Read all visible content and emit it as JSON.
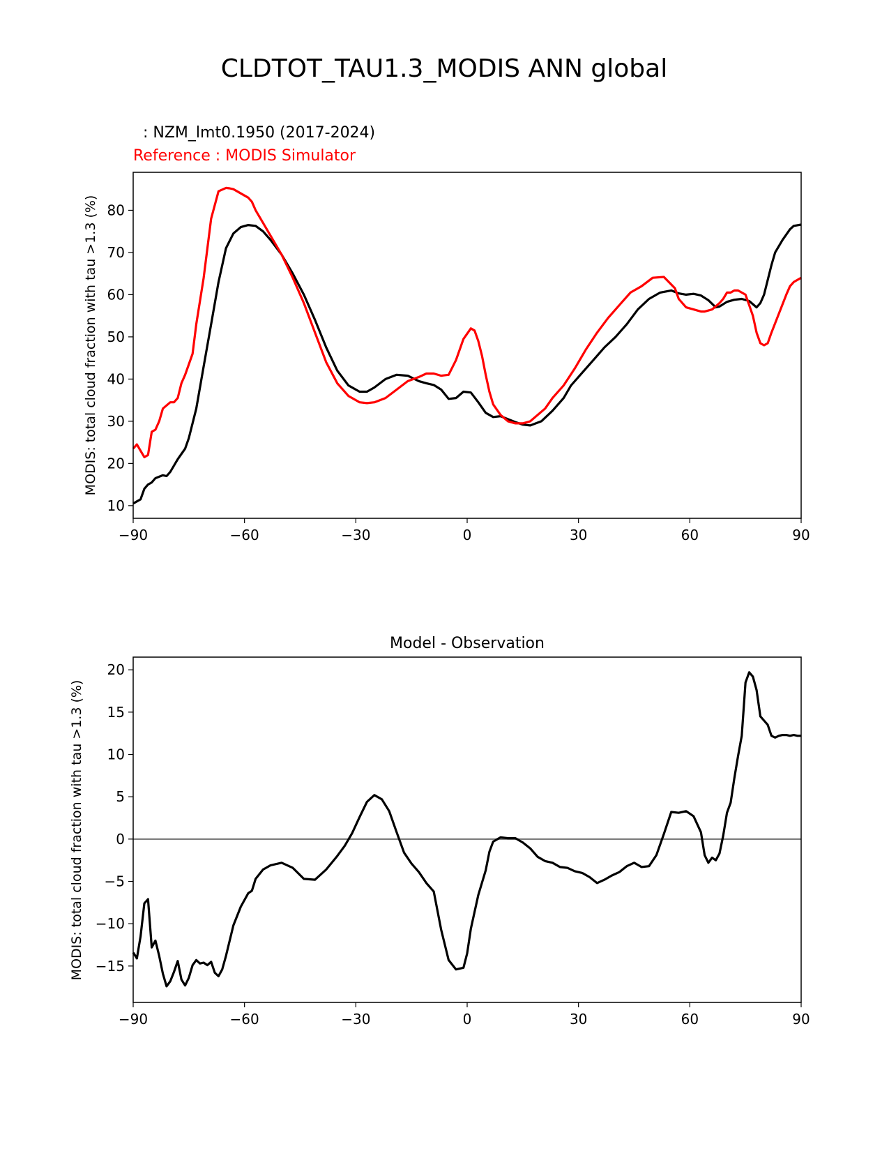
{
  "title": "CLDTOT_TAU1.3_MODIS ANN global",
  "colors": {
    "model": "#000000",
    "reference": "#ff0000",
    "zero_line": "#808080"
  },
  "chart_data": [
    {
      "type": "line",
      "model_label": ": NZM_lmt0.1950 (2017-2024)",
      "reference_label": "Reference : MODIS Simulator",
      "xlabel": "",
      "ylabel": "MODIS: total cloud fraction with tau >1.3 (%)",
      "xlim": [
        -90,
        90
      ],
      "ylim": [
        7,
        89
      ],
      "xticks": [
        -90,
        -60,
        -30,
        0,
        30,
        60,
        90
      ],
      "xtick_labels": [
        "−90",
        "−60",
        "−30",
        "0",
        "30",
        "60",
        "90"
      ],
      "yticks": [
        10,
        20,
        30,
        40,
        50,
        60,
        70,
        80
      ],
      "ytick_labels": [
        "10",
        "20",
        "30",
        "40",
        "50",
        "60",
        "70",
        "80"
      ],
      "series": [
        {
          "name": "NZM_lmt0.1950 (2017-2024)",
          "x": [
            -90,
            -88,
            -87,
            -86,
            -85,
            -84,
            -82,
            -81,
            -80,
            -78,
            -76,
            -75,
            -73,
            -71,
            -69,
            -67,
            -65,
            -63,
            -61,
            -59,
            -57,
            -55,
            -53,
            -50,
            -47,
            -44,
            -41,
            -38,
            -35,
            -32,
            -29,
            -27,
            -25,
            -22,
            -19,
            -16,
            -13,
            -11,
            -9,
            -7,
            -5,
            -3,
            -1,
            1,
            3,
            5,
            7,
            9,
            11,
            13,
            15,
            17,
            20,
            23,
            26,
            28,
            31,
            34,
            37,
            40,
            43,
            46,
            49,
            52,
            55,
            57,
            59,
            61,
            63,
            65,
            67,
            68,
            70,
            72,
            74,
            76,
            78,
            79,
            80,
            82,
            83,
            85,
            87,
            88,
            90
          ],
          "y": [
            10.5,
            11.5,
            14,
            15,
            15.5,
            16.5,
            17.2,
            17,
            18,
            21,
            23.5,
            26,
            33,
            43,
            53,
            63,
            71,
            74.5,
            76,
            76.5,
            76.3,
            75,
            73,
            69.5,
            65,
            60,
            54,
            47.5,
            42,
            38.5,
            37,
            37,
            38,
            40,
            41,
            40.8,
            39.5,
            39,
            38.6,
            37.5,
            35.3,
            35.5,
            37,
            36.8,
            34.5,
            32,
            31,
            31.2,
            30.5,
            29.8,
            29.2,
            29,
            30,
            32.5,
            35.5,
            38.5,
            41.5,
            44.5,
            47.5,
            50,
            53,
            56.5,
            59,
            60.5,
            61,
            60.3,
            60,
            60.2,
            59.8,
            58.7,
            57,
            57.2,
            58.3,
            58.8,
            59,
            58.5,
            57,
            58,
            60,
            67,
            70,
            73,
            75.5,
            76.3,
            76.6
          ]
        },
        {
          "name": "MODIS Simulator",
          "x": [
            -90,
            -89,
            -88,
            -87,
            -86,
            -85,
            -84,
            -83,
            -82,
            -80,
            -79,
            -78,
            -77,
            -76,
            -74,
            -73,
            -71,
            -69,
            -67,
            -65,
            -64,
            -63,
            -62,
            -60,
            -59,
            -58,
            -57,
            -55,
            -53,
            -50,
            -47,
            -44,
            -41,
            -38,
            -35,
            -32,
            -29,
            -27,
            -25,
            -22,
            -19,
            -16,
            -13,
            -11,
            -9,
            -7,
            -5,
            -3,
            -1,
            1,
            2,
            3,
            4,
            5,
            6,
            7,
            9,
            11,
            13,
            15,
            17,
            19,
            21,
            23,
            26,
            29,
            32,
            35,
            38,
            41,
            44,
            47,
            50,
            53,
            56,
            57,
            59,
            61,
            63,
            64,
            66,
            68,
            69,
            70,
            71,
            72,
            73,
            75,
            76,
            77,
            78,
            79,
            80,
            81,
            82,
            84,
            86,
            87,
            88,
            90
          ],
          "y": [
            23.5,
            24.5,
            23,
            21.5,
            22,
            27.5,
            28,
            30,
            33,
            34.5,
            34.5,
            35.5,
            39,
            41,
            46,
            53,
            64,
            78,
            84.5,
            85.3,
            85.2,
            85,
            84.5,
            83.5,
            83,
            82,
            80,
            77,
            74,
            69.5,
            64,
            58,
            51,
            44,
            39,
            36,
            34.5,
            34.3,
            34.5,
            35.5,
            37.5,
            39.5,
            40.5,
            41.3,
            41.3,
            40.8,
            41,
            44.5,
            49.5,
            52,
            51.5,
            49,
            45.5,
            41,
            37,
            34,
            31.5,
            30,
            29.5,
            29.5,
            30,
            31.5,
            33,
            35.5,
            38.5,
            42.5,
            47,
            51,
            54.5,
            57.5,
            60.5,
            62,
            64,
            64.2,
            61.5,
            59,
            57,
            56.5,
            56,
            56,
            56.5,
            58,
            59,
            60.5,
            60.5,
            61,
            61,
            60,
            57.5,
            55,
            51,
            48.5,
            48,
            48.5,
            51,
            55.5,
            60,
            62,
            63,
            64
          ]
        }
      ]
    },
    {
      "type": "line",
      "title": "Model - Observation",
      "xlabel": "",
      "ylabel": "MODIS: total cloud fraction with tau >1.3 (%)",
      "xlim": [
        -90,
        90
      ],
      "ylim": [
        -19.3,
        21.5
      ],
      "xticks": [
        -90,
        -60,
        -30,
        0,
        30,
        60,
        90
      ],
      "xtick_labels": [
        "−90",
        "−60",
        "−30",
        "0",
        "30",
        "60",
        "90"
      ],
      "yticks": [
        -15,
        -10,
        -5,
        0,
        5,
        10,
        15,
        20
      ],
      "ytick_labels": [
        "−15",
        "−10",
        "−5",
        "0",
        "5",
        "10",
        "15",
        "20"
      ],
      "zero_line": 0,
      "series": [
        {
          "name": "Model - Observation",
          "x": [
            -90,
            -89,
            -88,
            -87,
            -86,
            -85,
            -84,
            -83,
            -82,
            -81,
            -80,
            -79,
            -78,
            -77,
            -76,
            -75,
            -74,
            -73,
            -72,
            -71,
            -70,
            -69,
            -68,
            -67,
            -66,
            -65,
            -63,
            -61,
            -59,
            -58,
            -57,
            -55,
            -53,
            -50,
            -47,
            -44,
            -41,
            -38,
            -35,
            -33,
            -31,
            -29,
            -27,
            -25,
            -23,
            -21,
            -19,
            -17,
            -15,
            -13,
            -11,
            -9,
            -7,
            -5,
            -3,
            -1,
            0,
            1,
            3,
            5,
            6,
            7,
            9,
            11,
            13,
            15,
            17,
            19,
            21,
            23,
            25,
            27,
            29,
            31,
            33,
            35,
            37,
            39,
            41,
            43,
            45,
            47,
            49,
            51,
            53,
            55,
            57,
            59,
            61,
            63,
            64,
            65,
            66,
            67,
            68,
            69,
            70,
            71,
            72,
            73,
            74,
            75,
            76,
            77,
            78,
            79,
            80,
            81,
            82,
            83,
            84,
            85,
            86,
            87,
            88,
            89,
            90
          ],
          "y": [
            -13.4,
            -14.1,
            -11.5,
            -7.6,
            -7.1,
            -12.8,
            -12,
            -13.8,
            -15.9,
            -17.4,
            -16.8,
            -15.7,
            -14.4,
            -16.6,
            -17.3,
            -16.4,
            -14.9,
            -14.3,
            -14.7,
            -14.6,
            -14.9,
            -14.5,
            -15.8,
            -16.2,
            -15.4,
            -13.8,
            -10.2,
            -8,
            -6.4,
            -6.1,
            -4.7,
            -3.6,
            -3.1,
            -2.8,
            -3.4,
            -4.7,
            -4.8,
            -3.6,
            -2,
            -0.8,
            0.7,
            2.6,
            4.4,
            5.2,
            4.7,
            3.3,
            0.8,
            -1.6,
            -2.9,
            -3.9,
            -5.2,
            -6.2,
            -10.7,
            -14.3,
            -15.4,
            -15.2,
            -13.5,
            -10.6,
            -6.6,
            -3.7,
            -1.5,
            -0.3,
            0.2,
            0.1,
            0.1,
            -0.4,
            -1.1,
            -2.1,
            -2.6,
            -2.8,
            -3.3,
            -3.4,
            -3.8,
            -4,
            -4.5,
            -5.2,
            -4.8,
            -4.3,
            -3.9,
            -3.2,
            -2.8,
            -3.3,
            -3.2,
            -1.9,
            0.6,
            3.2,
            3.1,
            3.3,
            2.7,
            0.8,
            -1.9,
            -2.8,
            -2.2,
            -2.5,
            -1.7,
            0.4,
            3.1,
            4.3,
            7.2,
            9.8,
            12.2,
            18.5,
            19.7,
            19.2,
            17.6,
            14.5,
            14,
            13.5,
            12.2,
            12,
            12.2,
            12.3,
            12.3,
            12.2,
            12.3,
            12.2,
            12.2
          ]
        }
      ]
    }
  ]
}
